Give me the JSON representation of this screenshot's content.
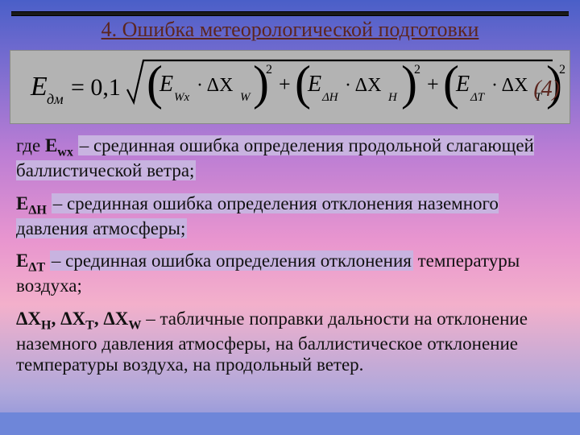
{
  "title": "4.  Ошибка метеорологической подготовки",
  "equation_number": "(4)",
  "formula": {
    "lhs_sym": "Е",
    "lhs_sub": "дм",
    "eq": "= 0,1",
    "sqrt_terms": [
      {
        "e_sub": "Wx",
        "x_sub": "W"
      },
      {
        "e_sub": "ΔH",
        "x_sub": "H"
      },
      {
        "e_sub": "ΔT",
        "x_sub": "T"
      }
    ],
    "colors": {
      "formula_bg": "#b3b3b3",
      "formula_text": "#000000",
      "accent": "#5c261f"
    }
  },
  "definitions": [
    {
      "prefix": "где ",
      "symbol_html": "E<sub>wx</sub>",
      "highlight": "– срединная ошибка определения продольной слагающей баллистической ветра;",
      "tail": ""
    },
    {
      "prefix": "",
      "symbol_html": "E<sub>ΔH</sub>",
      "highlight": "– срединная ошибка определения отклонения наземного давления атмосферы;",
      "tail": ""
    },
    {
      "prefix": "",
      "symbol_html": "E<sub>ΔT</sub>",
      "highlight": "– срединная ошибка определения отклонения",
      "tail": " температуры воздуха;"
    },
    {
      "prefix": "",
      "symbol_html": "ΔХ<sub>Н</sub>, ΔХ<sub>Т</sub>, ΔХ<sub>W</sub>",
      "highlight": "",
      "tail": " – табличные поправки дальности на отклонение наземного давления атмосферы, на баллистическое отклонение температуры воздуха, на продольный ветер."
    }
  ]
}
